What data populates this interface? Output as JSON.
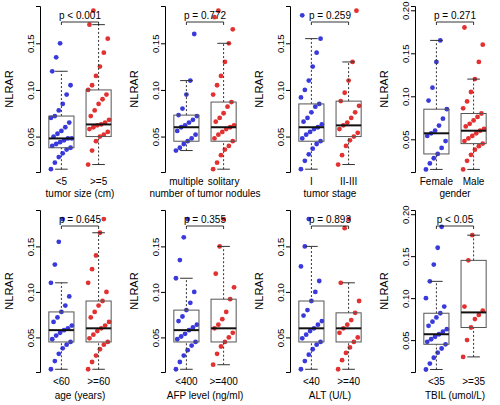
{
  "chart_data": [
    {
      "type": "box",
      "x_label": "tumor size (cm)",
      "y_label": "NLRAR",
      "annotation": "p < 0.001",
      "categories": [
        "<5",
        ">=5"
      ],
      "colors": [
        "#2424d8",
        "#e01a1a"
      ],
      "ylim": [
        0.012,
        0.19
      ],
      "yticks": [
        0.05,
        {
          "value": 0.1,
          "label": "0.10"
        },
        0.15
      ],
      "box": [
        [
          0.015,
          0.038,
          0.048,
          0.072,
          0.12
        ],
        [
          0.02,
          0.05,
          0.063,
          0.1,
          0.17
        ]
      ],
      "values": [
        [
          0.015,
          0.022,
          0.028,
          0.032,
          0.036,
          0.038,
          0.04,
          0.042,
          0.044,
          0.046,
          0.048,
          0.048,
          0.05,
          0.053,
          0.056,
          0.06,
          0.065,
          0.07,
          0.072,
          0.078,
          0.085,
          0.095,
          0.105,
          0.12,
          0.135,
          0.15
        ],
        [
          0.02,
          0.035,
          0.045,
          0.05,
          0.052,
          0.055,
          0.058,
          0.06,
          0.062,
          0.063,
          0.065,
          0.068,
          0.072,
          0.078,
          0.085,
          0.09,
          0.095,
          0.1,
          0.105,
          0.115,
          0.125,
          0.14,
          0.155,
          0.17,
          0.185
        ]
      ]
    },
    {
      "type": "box",
      "x_label": "number of tumor nodules",
      "y_label": "NLRAR",
      "annotation": "p = 0.772",
      "categories": [
        "multiple",
        "solitary"
      ],
      "colors": [
        "#2424d8",
        "#e01a1a"
      ],
      "ylim": [
        0.012,
        0.19
      ],
      "yticks": [
        0.05,
        {
          "value": 0.1,
          "label": "0.10"
        },
        0.15
      ],
      "box": [
        [
          0.035,
          0.045,
          0.06,
          0.073,
          0.11
        ],
        [
          0.015,
          0.045,
          0.06,
          0.087,
          0.15
        ]
      ],
      "values": [
        [
          0.035,
          0.038,
          0.042,
          0.045,
          0.048,
          0.052,
          0.056,
          0.06,
          0.062,
          0.065,
          0.068,
          0.072,
          0.073,
          0.08,
          0.095,
          0.11,
          0.16
        ],
        [
          0.015,
          0.022,
          0.03,
          0.036,
          0.04,
          0.045,
          0.048,
          0.052,
          0.055,
          0.058,
          0.06,
          0.062,
          0.066,
          0.07,
          0.075,
          0.082,
          0.087,
          0.095,
          0.105,
          0.115,
          0.13,
          0.15,
          0.165,
          0.178,
          0.185
        ]
      ]
    },
    {
      "type": "box",
      "x_label": "tumor stage",
      "y_label": "NLRAR",
      "annotation": "p = 0.259",
      "categories": [
        "I",
        "II-III"
      ],
      "colors": [
        "#2424d8",
        "#e01a1a"
      ],
      "ylim": [
        0.012,
        0.19
      ],
      "yticks": [
        0.05,
        {
          "value": 0.1,
          "label": "0.10"
        },
        0.15
      ],
      "box": [
        [
          0.015,
          0.045,
          0.06,
          0.085,
          0.155
        ],
        [
          0.02,
          0.05,
          0.062,
          0.088,
          0.13
        ]
      ],
      "values": [
        [
          0.015,
          0.024,
          0.031,
          0.037,
          0.042,
          0.045,
          0.048,
          0.052,
          0.055,
          0.058,
          0.06,
          0.063,
          0.066,
          0.07,
          0.076,
          0.082,
          0.085,
          0.092,
          0.1,
          0.11,
          0.125,
          0.14,
          0.155,
          0.18
        ],
        [
          0.02,
          0.03,
          0.04,
          0.046,
          0.05,
          0.054,
          0.058,
          0.062,
          0.065,
          0.07,
          0.076,
          0.083,
          0.088,
          0.097,
          0.11,
          0.13,
          0.185
        ]
      ]
    },
    {
      "type": "box",
      "x_label": "gender",
      "y_label": "NLRAR",
      "annotation": "p = 0.271",
      "categories": [
        "Female",
        "Male"
      ],
      "colors": [
        "#2424d8",
        "#e01a1a"
      ],
      "ylim": [
        0.012,
        0.205
      ],
      "yticks": [
        0.05,
        {
          "value": 0.1,
          "label": "0.10"
        },
        0.15,
        {
          "value": 0.2,
          "label": "0.20"
        }
      ],
      "box": [
        [
          0.015,
          0.033,
          0.057,
          0.085,
          0.165
        ],
        [
          0.015,
          0.045,
          0.06,
          0.08,
          0.12
        ]
      ],
      "values": [
        [
          0.015,
          0.022,
          0.028,
          0.033,
          0.04,
          0.048,
          0.054,
          0.057,
          0.06,
          0.066,
          0.074,
          0.085,
          0.095,
          0.11,
          0.14,
          0.165
        ],
        [
          0.015,
          0.025,
          0.032,
          0.038,
          0.042,
          0.045,
          0.048,
          0.051,
          0.054,
          0.057,
          0.06,
          0.062,
          0.065,
          0.068,
          0.072,
          0.076,
          0.08,
          0.086,
          0.094,
          0.105,
          0.12,
          0.14,
          0.16,
          0.18
        ]
      ]
    },
    {
      "type": "box",
      "x_label": "age (years)",
      "y_label": "NLRAR",
      "annotation": "p = 0.645",
      "categories": [
        "<60",
        ">=60"
      ],
      "colors": [
        "#2424d8",
        "#e01a1a"
      ],
      "ylim": [
        0.012,
        0.19
      ],
      "yticks": [
        0.05,
        {
          "value": 0.1,
          "label": "0.10"
        },
        0.15
      ],
      "box": [
        [
          0.015,
          0.045,
          0.058,
          0.078,
          0.11
        ],
        [
          0.015,
          0.045,
          0.06,
          0.09,
          0.165
        ]
      ],
      "values": [
        [
          0.015,
          0.024,
          0.032,
          0.038,
          0.042,
          0.045,
          0.048,
          0.052,
          0.055,
          0.058,
          0.06,
          0.063,
          0.067,
          0.072,
          0.078,
          0.085,
          0.095,
          0.11,
          0.13,
          0.155,
          0.18
        ],
        [
          0.015,
          0.023,
          0.03,
          0.037,
          0.042,
          0.045,
          0.049,
          0.053,
          0.057,
          0.06,
          0.063,
          0.067,
          0.072,
          0.078,
          0.085,
          0.09,
          0.1,
          0.11,
          0.125,
          0.14,
          0.165,
          0.18
        ]
      ]
    },
    {
      "type": "box",
      "x_label": "AFP level (ng/ml)",
      "y_label": "NLRAR",
      "annotation": "p = 0.355",
      "categories": [
        "<400",
        ">=400"
      ],
      "colors": [
        "#2424d8",
        "#e01a1a"
      ],
      "ylim": [
        0.012,
        0.19
      ],
      "yticks": [
        0.05,
        {
          "value": 0.1,
          "label": "0.10"
        },
        0.15
      ],
      "box": [
        [
          0.015,
          0.045,
          0.058,
          0.08,
          0.115
        ],
        [
          0.02,
          0.045,
          0.06,
          0.092,
          0.15
        ]
      ],
      "values": [
        [
          0.015,
          0.023,
          0.03,
          0.036,
          0.041,
          0.045,
          0.048,
          0.051,
          0.054,
          0.058,
          0.061,
          0.064,
          0.068,
          0.073,
          0.08,
          0.088,
          0.1,
          0.115,
          0.135,
          0.16,
          0.18
        ],
        [
          0.02,
          0.032,
          0.04,
          0.045,
          0.05,
          0.055,
          0.06,
          0.064,
          0.07,
          0.078,
          0.092,
          0.105,
          0.12,
          0.15,
          0.18
        ]
      ]
    },
    {
      "type": "box",
      "x_label": "ALT (U/L)",
      "y_label": "NLRAR",
      "annotation": "p = 0.893",
      "categories": [
        "<40",
        ">=40"
      ],
      "colors": [
        "#2424d8",
        "#e01a1a"
      ],
      "ylim": [
        0.012,
        0.19
      ],
      "yticks": [
        0.05,
        {
          "value": 0.1,
          "label": "0.10"
        },
        0.15
      ],
      "box": [
        [
          0.015,
          0.045,
          0.06,
          0.09,
          0.15
        ],
        [
          0.015,
          0.045,
          0.06,
          0.077,
          0.11
        ]
      ],
      "values": [
        [
          0.015,
          0.024,
          0.031,
          0.037,
          0.042,
          0.045,
          0.049,
          0.053,
          0.057,
          0.06,
          0.064,
          0.068,
          0.074,
          0.08,
          0.09,
          0.1,
          0.112,
          0.128,
          0.15,
          0.18
        ],
        [
          0.015,
          0.025,
          0.033,
          0.039,
          0.045,
          0.05,
          0.055,
          0.06,
          0.064,
          0.069,
          0.077,
          0.09,
          0.11,
          0.17,
          0.18
        ]
      ]
    },
    {
      "type": "box",
      "x_label": "TBIL (umol/L)",
      "y_label": "NLRAR",
      "annotation": "p < 0.05",
      "categories": [
        "<35",
        ">=35"
      ],
      "colors": [
        "#2424d8",
        "#e01a1a"
      ],
      "ylim": [
        0.012,
        0.205
      ],
      "yticks": [
        0.05,
        {
          "value": 0.1,
          "label": "0.10"
        },
        0.15,
        {
          "value": 0.2,
          "label": "0.20"
        }
      ],
      "box": [
        [
          0.015,
          0.045,
          0.057,
          0.082,
          0.12
        ],
        [
          0.03,
          0.065,
          0.083,
          0.145,
          0.175
        ]
      ],
      "values": [
        [
          0.015,
          0.022,
          0.029,
          0.035,
          0.04,
          0.045,
          0.048,
          0.051,
          0.054,
          0.057,
          0.06,
          0.063,
          0.067,
          0.072,
          0.077,
          0.082,
          0.09,
          0.1,
          0.12,
          0.14,
          0.16,
          0.185
        ],
        [
          0.03,
          0.05,
          0.065,
          0.075,
          0.08,
          0.085,
          0.09,
          0.145,
          0.175
        ]
      ]
    }
  ]
}
